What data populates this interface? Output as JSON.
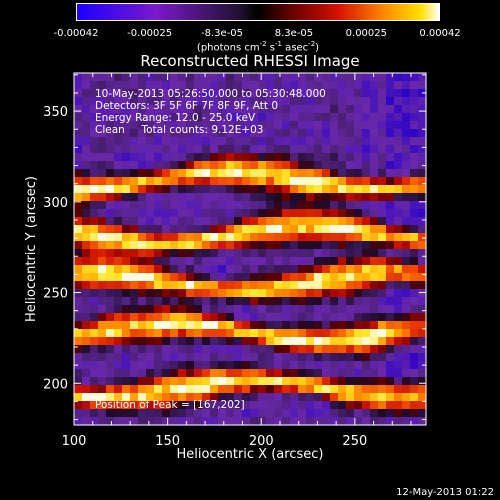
{
  "colorbar": {
    "tick_labels": [
      "-0.00042",
      "-0.00025",
      "-8.3e-05",
      "8.3e-05",
      "0.00025",
      "0.00042"
    ],
    "tick_values": [
      -0.00042,
      -0.00025,
      -8.3e-05,
      8.3e-05,
      0.00025,
      0.00042
    ],
    "range": [
      -0.00042,
      0.00042
    ],
    "unit_parts": [
      "(photons cm",
      "-2",
      " s",
      "-1",
      " asec",
      "-2",
      ")"
    ]
  },
  "chart_data": {
    "type": "heatmap",
    "title": "Reconstructed RHESSI Image",
    "xlabel": "Heliocentric X (arcsec)",
    "ylabel": "Heliocentric Y (arcsec)",
    "xlim": [
      100,
      288
    ],
    "ylim": [
      177,
      371
    ],
    "x_ticks": [
      100,
      150,
      200,
      250
    ],
    "y_ticks": [
      200,
      250,
      300,
      350
    ],
    "colormap": "rainbow-negative-blue-to-positive-red-yellow-white",
    "bright_bands_y": [
      197,
      228,
      256,
      282,
      312
    ],
    "peak": [
      167,
      202
    ],
    "annotations": [
      "10-May-2013 05:26:50.000 to 05:30:48.000",
      "Detectors: 3F 5F 6F 7F 8F 9F, Att 0",
      "Energy Range: 12.0 - 25.0 keV",
      "Clean     Total counts: 9.12E+03"
    ],
    "peak_label": "Position of Peak = [167,202]"
  },
  "footer": {
    "date": "12-May-2013 01:22"
  }
}
